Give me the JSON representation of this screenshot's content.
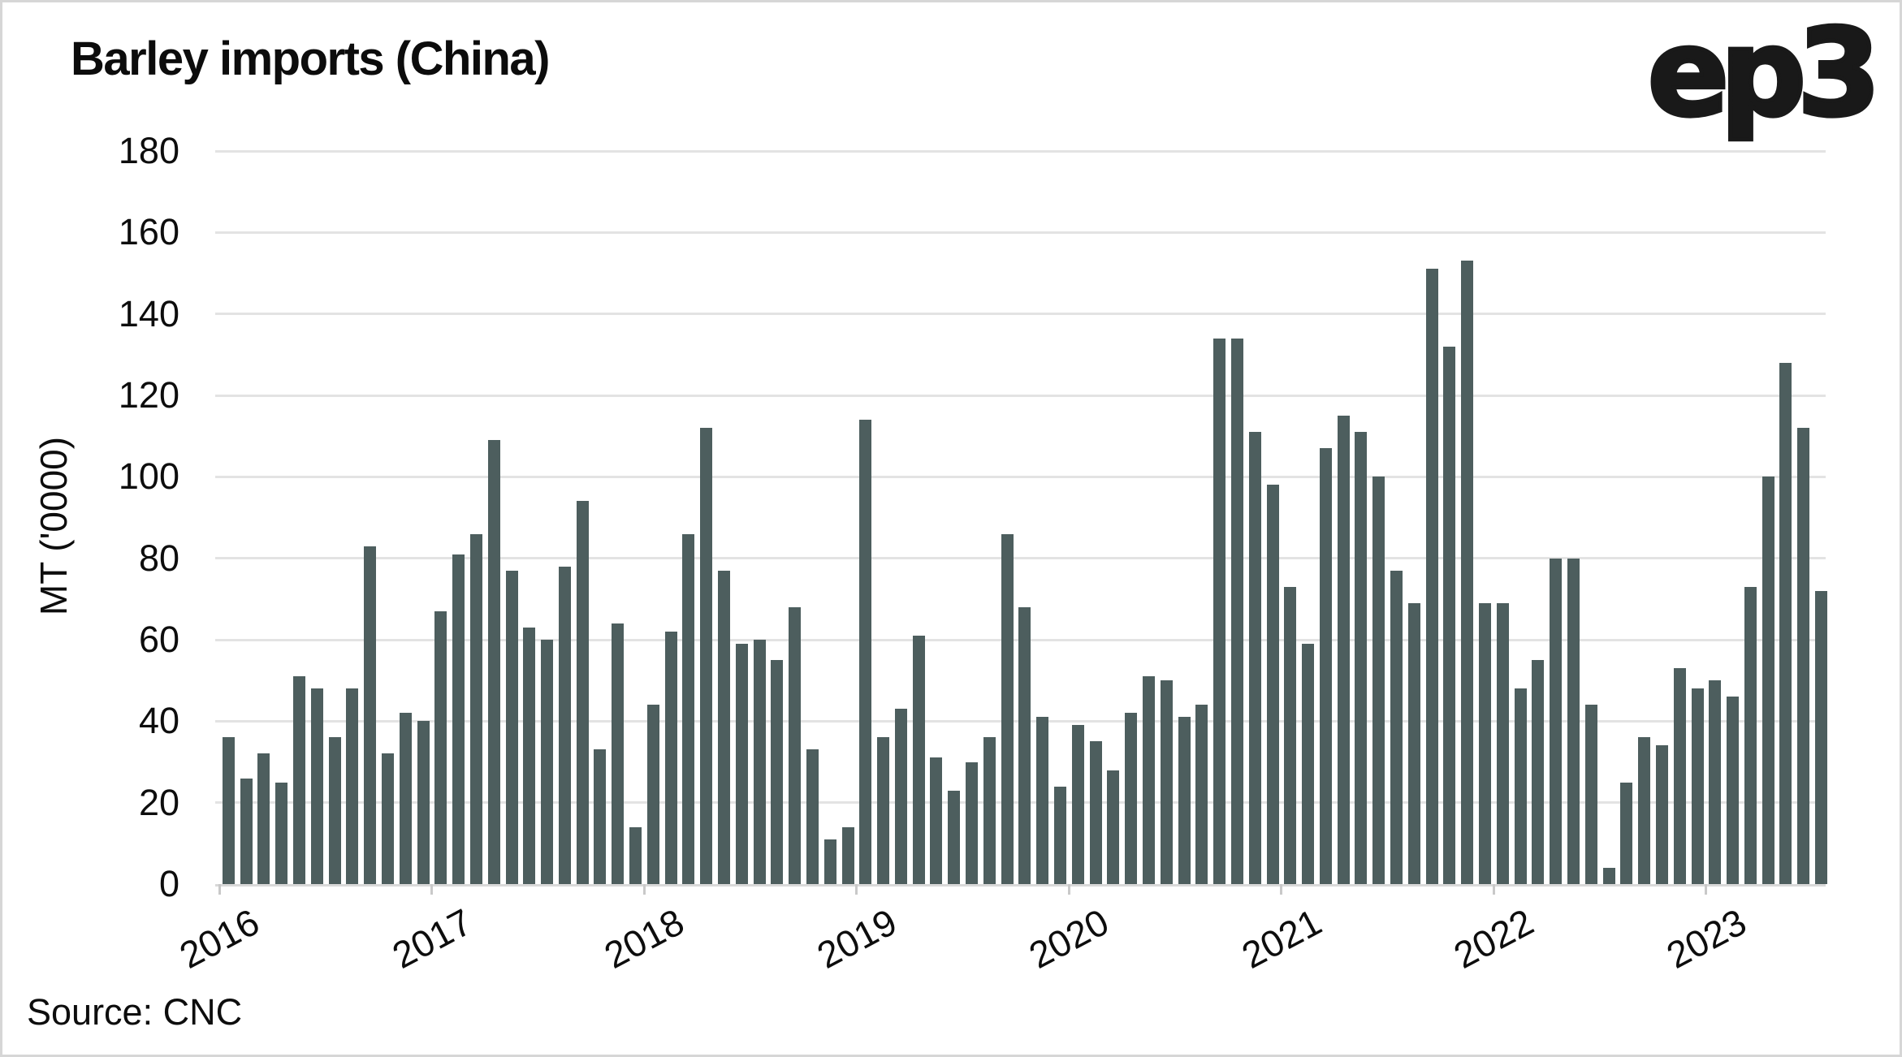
{
  "title": "Barley imports (China)",
  "logo": {
    "text": "ep3"
  },
  "source": "Source: CNC",
  "colors": {
    "bar": "#4d5e5e",
    "gridline": "#e3e3e3",
    "axis_line": "#d9d9d9",
    "tick": "#c9c9c9",
    "text": "#0d0d0d",
    "frame_border": "#d6d6d6",
    "background": "#ffffff"
  },
  "chart_data": {
    "type": "bar",
    "title": "Barley imports (China)",
    "xlabel": "",
    "ylabel": "MT ('0000)",
    "ylim": [
      0,
      180
    ],
    "ytick_step": 20,
    "yticks": [
      0,
      20,
      40,
      60,
      80,
      100,
      120,
      140,
      160,
      180
    ],
    "grid": "horizontal",
    "legend": "none",
    "year_ticks": [
      "2016",
      "2017",
      "2018",
      "2019",
      "2020",
      "2021",
      "2022",
      "2023"
    ],
    "categories": [
      "2016-01",
      "2016-02",
      "2016-03",
      "2016-04",
      "2016-05",
      "2016-06",
      "2016-07",
      "2016-08",
      "2016-09",
      "2016-10",
      "2016-11",
      "2016-12",
      "2017-01",
      "2017-02",
      "2017-03",
      "2017-04",
      "2017-05",
      "2017-06",
      "2017-07",
      "2017-08",
      "2017-09",
      "2017-10",
      "2017-11",
      "2017-12",
      "2018-01",
      "2018-02",
      "2018-03",
      "2018-04",
      "2018-05",
      "2018-06",
      "2018-07",
      "2018-08",
      "2018-09",
      "2018-10",
      "2018-11",
      "2018-12",
      "2019-01",
      "2019-02",
      "2019-03",
      "2019-04",
      "2019-05",
      "2019-06",
      "2019-07",
      "2019-08",
      "2019-09",
      "2019-10",
      "2019-11",
      "2019-12",
      "2020-01",
      "2020-02",
      "2020-03",
      "2020-04",
      "2020-05",
      "2020-06",
      "2020-07",
      "2020-08",
      "2020-09",
      "2020-10",
      "2020-11",
      "2020-12",
      "2021-01",
      "2021-02",
      "2021-03",
      "2021-04",
      "2021-05",
      "2021-06",
      "2021-07",
      "2021-08",
      "2021-09",
      "2021-10",
      "2021-11",
      "2021-12",
      "2022-01",
      "2022-02",
      "2022-03",
      "2022-04",
      "2022-05",
      "2022-06",
      "2022-07",
      "2022-08",
      "2022-09",
      "2022-10",
      "2022-11",
      "2022-12",
      "2023-01",
      "2023-02",
      "2023-03",
      "2023-04",
      "2023-05",
      "2023-06",
      "2023-07"
    ],
    "values": [
      36,
      26,
      32,
      25,
      51,
      48,
      36,
      48,
      83,
      32,
      42,
      40,
      67,
      81,
      86,
      109,
      77,
      63,
      60,
      78,
      94,
      33,
      64,
      14,
      44,
      62,
      86,
      112,
      77,
      59,
      60,
      55,
      68,
      33,
      11,
      14,
      114,
      36,
      43,
      61,
      31,
      23,
      30,
      36,
      86,
      68,
      41,
      24,
      39,
      35,
      28,
      42,
      51,
      50,
      41,
      44,
      134,
      134,
      111,
      98,
      73,
      59,
      107,
      115,
      111,
      100,
      77,
      69,
      151,
      132,
      153,
      69,
      69,
      48,
      55,
      80,
      80,
      44,
      4,
      25,
      36,
      34,
      53,
      48,
      50,
      46,
      73,
      100,
      128,
      112,
      72
    ]
  }
}
